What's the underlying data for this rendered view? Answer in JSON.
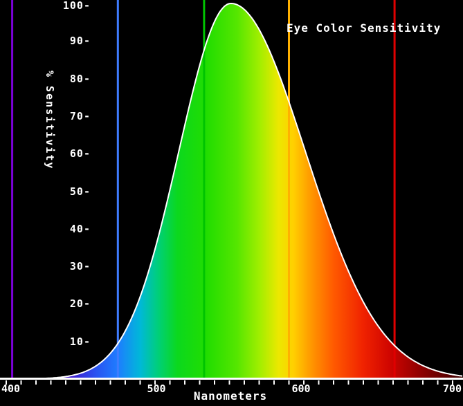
{
  "window": {
    "background": "#000000"
  },
  "title": {
    "text": "Eye Color Sensitivity",
    "color": "#ffffff"
  },
  "axes": {
    "ylabel": "% Sensitivity",
    "xlabel": "Nanometers",
    "x_ticks": [
      "400",
      "500",
      "600",
      "700"
    ],
    "y_ticks": [
      {
        "value": 100,
        "label": "100-"
      },
      {
        "value": 90,
        "label": "90-"
      },
      {
        "value": 80,
        "label": "80-"
      },
      {
        "value": 70,
        "label": "70-"
      },
      {
        "value": 60,
        "label": "60-"
      },
      {
        "value": 50,
        "label": "50-"
      },
      {
        "value": 40,
        "label": "40-"
      },
      {
        "value": 30,
        "label": "30-"
      },
      {
        "value": 20,
        "label": "20-"
      },
      {
        "value": 10,
        "label": "10-"
      }
    ]
  },
  "chart_data": {
    "type": "area",
    "title": "Eye Color Sensitivity",
    "xlabel": "Nanometers",
    "ylabel": "% Sensitivity",
    "xlim": [
      396,
      707
    ],
    "ylim": [
      0,
      100
    ],
    "x_tick_values": [
      400,
      500,
      600,
      700
    ],
    "x_minor_tick_step_nm": 10,
    "y_tick_values": [
      10,
      20,
      30,
      40,
      50,
      60,
      70,
      80,
      90,
      100
    ],
    "background_color": "#000000",
    "axis_color": "#ffffff",
    "curve_outline_color": "#ffffff",
    "curve_model": {
      "shape": "asymmetric-gaussian",
      "peak_nm": 551,
      "amplitude_pct": 100,
      "sigma_left_nm": 35,
      "sigma_right_nm": 50
    },
    "samples_nm_pct": [
      [
        400,
        0
      ],
      [
        420,
        0.1
      ],
      [
        440,
        0.7
      ],
      [
        460,
        3.4
      ],
      [
        480,
        12.7
      ],
      [
        500,
        34.6
      ],
      [
        520,
        67.6
      ],
      [
        540,
        95.2
      ],
      [
        551,
        100
      ],
      [
        560,
        98.4
      ],
      [
        580,
        84.5
      ],
      [
        600,
        61.9
      ],
      [
        620,
        38.6
      ],
      [
        640,
        20.5
      ],
      [
        660,
        9.3
      ],
      [
        680,
        3.6
      ],
      [
        700,
        1.2
      ]
    ],
    "spectral_lines": [
      {
        "nm": 404,
        "color": "#7b00d8",
        "name": "violet-line"
      },
      {
        "nm": 475,
        "color": "#3f7cff",
        "name": "blue-line"
      },
      {
        "nm": 533,
        "color": "#00c400",
        "name": "green-line"
      },
      {
        "nm": 590,
        "color": "#ffb000",
        "name": "yellow-line"
      },
      {
        "nm": 661,
        "color": "#e00000",
        "name": "red-line"
      }
    ],
    "spectrum_gradient": [
      {
        "nm": 396,
        "color": "#0d0018"
      },
      {
        "nm": 420,
        "color": "#2b0070"
      },
      {
        "nm": 440,
        "color": "#4310c8"
      },
      {
        "nm": 460,
        "color": "#2a52f0"
      },
      {
        "nm": 475,
        "color": "#1e7dff"
      },
      {
        "nm": 490,
        "color": "#00b8d8"
      },
      {
        "nm": 502,
        "color": "#00cf7a"
      },
      {
        "nm": 515,
        "color": "#0bd81e"
      },
      {
        "nm": 535,
        "color": "#22dd00"
      },
      {
        "nm": 555,
        "color": "#55e600"
      },
      {
        "nm": 570,
        "color": "#a0ee00"
      },
      {
        "nm": 583,
        "color": "#ece800"
      },
      {
        "nm": 593,
        "color": "#ffcf00"
      },
      {
        "nm": 605,
        "color": "#ff9700"
      },
      {
        "nm": 620,
        "color": "#ff5a00"
      },
      {
        "nm": 640,
        "color": "#f02200"
      },
      {
        "nm": 658,
        "color": "#cf0500"
      },
      {
        "nm": 678,
        "color": "#900000"
      },
      {
        "nm": 707,
        "color": "#3c0000"
      }
    ]
  }
}
